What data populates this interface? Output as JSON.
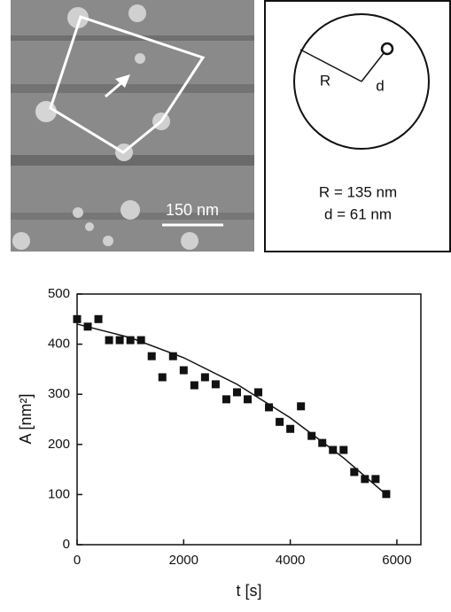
{
  "afm_image": {
    "scale_bar": "150 nm"
  },
  "diagram": {
    "radius_label": "R",
    "distance_label": "d",
    "radius_text": "R = 135 nm",
    "distance_text": "d = 61 nm"
  },
  "chart_data": {
    "type": "scatter",
    "x_label": "t [s]",
    "y_label": "A [nm²]",
    "x": [
      0,
      200,
      400,
      600,
      800,
      1000,
      1200,
      1400,
      1600,
      1800,
      2000,
      2200,
      2400,
      2600,
      2800,
      3000,
      3200,
      3400,
      3600,
      3800,
      4000,
      4200,
      4400,
      4600,
      4800,
      5000,
      5200,
      5400,
      5600,
      5800
    ],
    "values": [
      450,
      435,
      450,
      408,
      408,
      408,
      408,
      376,
      334,
      376,
      348,
      318,
      334,
      320,
      290,
      304,
      290,
      304,
      274,
      245,
      231,
      276,
      217,
      203,
      189,
      189,
      145,
      131,
      131,
      101
    ],
    "color": "#111111",
    "fit": {
      "x": [
        0,
        1000,
        2000,
        3000,
        4000,
        5000,
        5800
      ],
      "values": [
        440,
        413,
        373,
        320,
        253,
        173,
        100
      ]
    },
    "xlim": [
      0,
      6450
    ],
    "ylim": [
      0,
      500
    ],
    "xticks": [
      0,
      2000,
      4000,
      6000
    ],
    "yticks": [
      0,
      100,
      200,
      300,
      400,
      500
    ]
  }
}
